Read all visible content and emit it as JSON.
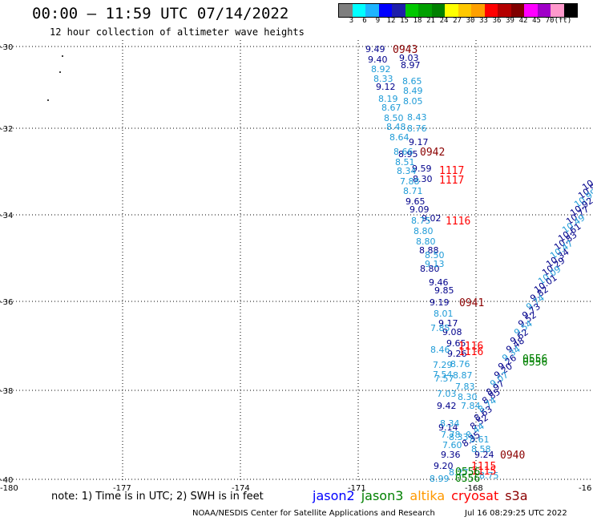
{
  "header": {
    "title": "00:00 – 11:59 UTC 07/14/2022",
    "subtitle": "12 hour collection of altimeter wave heights"
  },
  "colorbar": {
    "colors": [
      "#7f7f7f",
      "#00ffff",
      "#1eb4ff",
      "#0000ff",
      "#1e1eaa",
      "#00c800",
      "#00a000",
      "#008000",
      "#ffff00",
      "#ffc800",
      "#ffa000",
      "#ff0000",
      "#b40000",
      "#800000",
      "#ff00ff",
      "#a000c8",
      "#ff99cc",
      "#000000"
    ],
    "labels": [
      "3",
      "6",
      "9",
      "12",
      "15",
      "18",
      "21",
      "24",
      "27",
      "30",
      "33",
      "36",
      "39",
      "42",
      "45",
      "70",
      "(ft)"
    ]
  },
  "axes": {
    "x_ticks": [
      "-180",
      "-177",
      "-174",
      "-171",
      "-168",
      "-16"
    ],
    "y_ticks": [
      "-30",
      "-32",
      "-34",
      "-36",
      "-38",
      "-40"
    ]
  },
  "tracks": {
    "colors": {
      "jason3_desc": "#00008b",
      "jason3_desc_light": "#1e9bd7",
      "s3a": "#8b0000",
      "cryosat": "#ff0000",
      "altika": "#008000"
    },
    "west_dark": [
      "9.49",
      "9.40",
      "9.03",
      "8.97",
      "9.12",
      "8.95",
      "9.17",
      "9.59",
      "8.30",
      "9.65",
      "9.09",
      "9.02",
      "8.88",
      "8.80",
      "9.46",
      "9.85",
      "9.19",
      "9.17",
      "9.08",
      "9.65",
      "9.26",
      "9.42",
      "9.14",
      "9.36",
      "9.24",
      "9.20"
    ],
    "west_light": [
      "8.92",
      "8.33",
      "8.65",
      "8.49",
      "8.05",
      "8.19",
      "8.67",
      "8.43",
      "8.50",
      "8.48",
      "8.76",
      "8.64",
      "8.66",
      "8.51",
      "8.34",
      "7.88",
      "8.71",
      "8.75",
      "8.80",
      "8.80",
      "8.50",
      "9.13",
      "8.01",
      "7.85",
      "8.46",
      "7.29",
      "7.54",
      "7.57",
      "8.76",
      "8.87",
      "7.83",
      "7.03",
      "8.30",
      "7.84",
      "8.34",
      "7.78",
      "7.60",
      "8.33",
      "8.61",
      "8.58",
      "8.99",
      "8.75",
      "8.27"
    ],
    "east_track": [
      "10.",
      "10.99",
      "10.99",
      "10.92",
      "10.77",
      "10.49",
      "10.61",
      "10.83",
      "10.47",
      "10.34",
      "10.29",
      "10.09",
      "10.01",
      "9.82",
      "9.74",
      "9.73",
      "9.52",
      "9.54",
      "9.62",
      "9.48",
      "9.34",
      "9.26",
      "9.20",
      "9.07",
      "8.97",
      "8.85",
      "8.74",
      "8.63",
      "8.52",
      "8.44",
      "8.35"
    ],
    "times": [
      {
        "t": "0943",
        "c": "s3a"
      },
      {
        "t": "0942",
        "c": "s3a"
      },
      {
        "t": "0941",
        "c": "s3a"
      },
      {
        "t": "0940",
        "c": "s3a"
      },
      {
        "t": "1117",
        "c": "cryosat"
      },
      {
        "t": "1117",
        "c": "cryosat"
      },
      {
        "t": "1116",
        "c": "cryosat"
      },
      {
        "t": "1116",
        "c": "cryosat"
      },
      {
        "t": "1116",
        "c": "cryosat"
      },
      {
        "t": "1115",
        "c": "cryosat"
      },
      {
        "t": "1115",
        "c": "cryosat"
      },
      {
        "t": "0556",
        "c": "altika"
      },
      {
        "t": "0556",
        "c": "altika"
      },
      {
        "t": "0556",
        "c": "altika"
      },
      {
        "t": "0556",
        "c": "altika"
      }
    ]
  },
  "footer": {
    "note": "note: 1) Time is in UTC; 2) SWH is in feet",
    "legend": [
      {
        "name": "jason2",
        "color": "#0000ff"
      },
      {
        "name": "jason3",
        "color": "#008000"
      },
      {
        "name": "altika",
        "color": "#ff9900"
      },
      {
        "name": "cryosat",
        "color": "#ff0000"
      },
      {
        "name": "s3a",
        "color": "#8b0000"
      }
    ],
    "credit": "NOAA/NESDIS Center for Satellite Applications and Research",
    "stamp": "Jul 16 08:29:25 UTC 2022"
  }
}
